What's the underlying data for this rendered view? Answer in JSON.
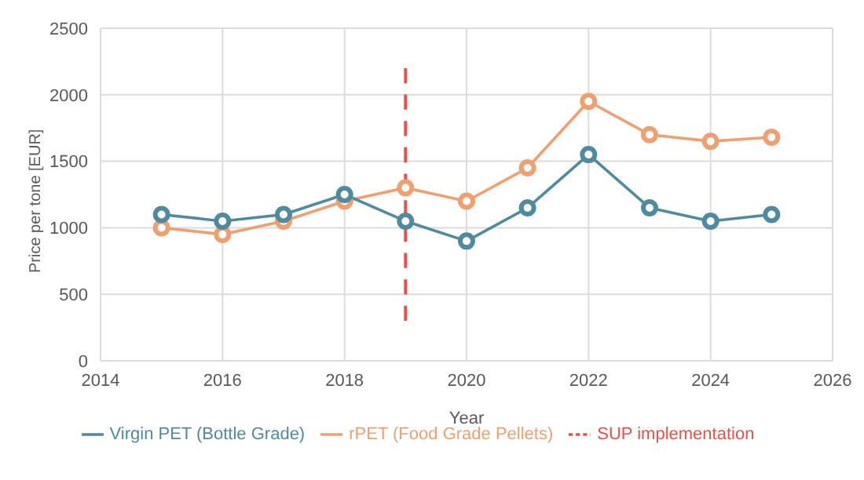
{
  "chart_data": {
    "type": "line",
    "xlabel": "Year",
    "ylabel": "Price per tone [EUR]",
    "xlim": [
      2014,
      2026
    ],
    "xticks": [
      2014,
      2016,
      2018,
      2020,
      2022,
      2024,
      2026
    ],
    "ylim": [
      0,
      2500
    ],
    "yticks": [
      0,
      500,
      1000,
      1500,
      2000,
      2500
    ],
    "grid": true,
    "legend": "bottom",
    "marker": "circle",
    "series": [
      {
        "name": "Virgin PET (Bottle Grade)",
        "color": "#4e8aa0",
        "x": [
          2015,
          2016,
          2017,
          2018,
          2019,
          2020,
          2021,
          2022,
          2023,
          2024,
          2025
        ],
        "values": [
          1100,
          1050,
          1100,
          1250,
          1050,
          900,
          1150,
          1550,
          1150,
          1050,
          1100
        ]
      },
      {
        "name": "rPET (Food Grade Pellets)",
        "color": "#f0a070",
        "x": [
          2015,
          2016,
          2017,
          2018,
          2019,
          2020,
          2021,
          2022,
          2023,
          2024,
          2025
        ],
        "values": [
          1000,
          950,
          1050,
          1200,
          1300,
          1200,
          1450,
          1950,
          1700,
          1650,
          1680
        ]
      },
      {
        "name": "SUP implementation",
        "color": "#e8504a",
        "x": [
          2019,
          2019
        ],
        "values": [
          300,
          2200
        ],
        "line_style": "dashed",
        "marker": "none"
      }
    ]
  }
}
